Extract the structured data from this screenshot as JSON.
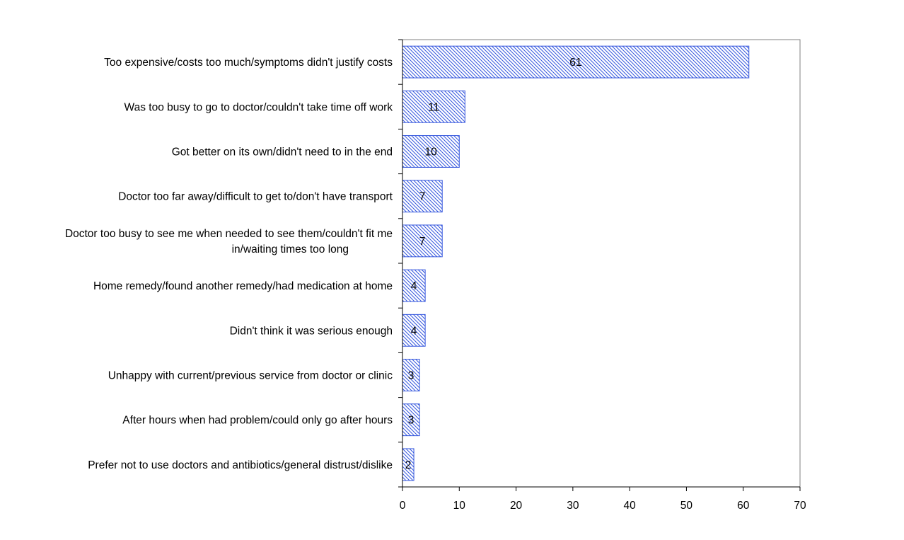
{
  "chart_data": {
    "type": "bar",
    "orientation": "horizontal",
    "categories": [
      [
        "Too expensive/costs too much/symptoms didn't justify costs"
      ],
      [
        "Was too busy to go to doctor/couldn't take time off work"
      ],
      [
        "Got better on its own/didn't need to in the end"
      ],
      [
        "Doctor too far away/difficult to get to/don't have transport"
      ],
      [
        "Doctor too busy to see me when needed to see them/couldn't fit me",
        "in/waiting times too long"
      ],
      [
        "Home remedy/found another remedy/had medication at home"
      ],
      [
        "Didn't think it was serious enough"
      ],
      [
        "Unhappy with current/previous service from doctor or clinic"
      ],
      [
        "After hours when had problem/could only go after hours"
      ],
      [
        "Prefer not to use doctors and antibiotics/general distrust/dislike"
      ]
    ],
    "values": [
      61,
      11,
      10,
      7,
      7,
      4,
      4,
      3,
      3,
      2
    ],
    "data_labels": [
      "61",
      "11",
      "10",
      "7",
      "7",
      "4",
      "4",
      "3",
      "3",
      "2"
    ],
    "xlim": [
      0,
      70
    ],
    "x_ticks": [
      "0",
      "10",
      "20",
      "30",
      "40",
      "50",
      "60",
      "70"
    ],
    "title": "",
    "xlabel": "",
    "ylabel": "",
    "grid": false,
    "legend": "none",
    "bar_color": "#3355dd",
    "bar_fill": "#ffffff"
  }
}
